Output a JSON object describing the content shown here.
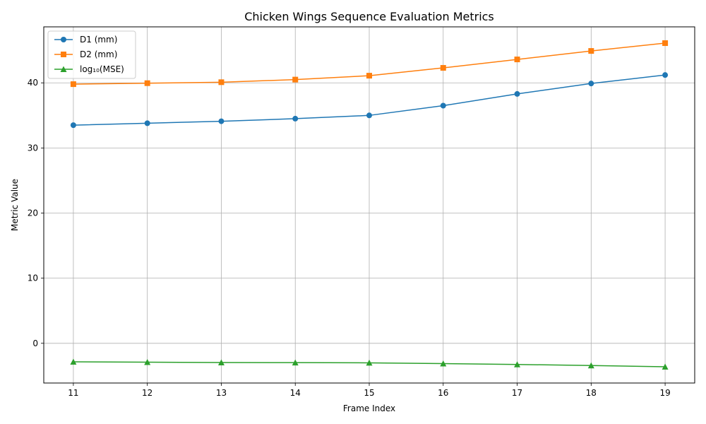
{
  "chart_data": {
    "type": "line",
    "title": "Chicken Wings Sequence Evaluation Metrics",
    "xlabel": "Frame Index",
    "ylabel": "Metric Value",
    "x": [
      11,
      12,
      13,
      14,
      15,
      16,
      17,
      18,
      19
    ],
    "xlim": [
      10.6,
      19.4
    ],
    "ylim": [
      -6.1,
      48.6
    ],
    "xticks": [
      "11",
      "12",
      "13",
      "14",
      "15",
      "16",
      "17",
      "18",
      "19"
    ],
    "yticks": [
      "0",
      "10",
      "20",
      "30",
      "40"
    ],
    "grid": true,
    "legend_position": "top-left",
    "series": [
      {
        "name": "D1 (mm)",
        "color": "#1f77b4",
        "marker": "circle",
        "values": [
          33.5,
          33.8,
          34.1,
          34.5,
          35.0,
          36.5,
          38.3,
          39.9,
          41.2
        ]
      },
      {
        "name": "D2 (mm)",
        "color": "#ff7f0e",
        "marker": "square",
        "values": [
          39.8,
          39.95,
          40.1,
          40.5,
          41.1,
          42.3,
          43.6,
          44.9,
          46.1
        ]
      },
      {
        "name": "log₁₀(MSE)",
        "color": "#2ca02c",
        "marker": "triangle",
        "values": [
          -2.85,
          -2.9,
          -2.95,
          -2.97,
          -3.0,
          -3.12,
          -3.25,
          -3.42,
          -3.6
        ]
      }
    ]
  }
}
